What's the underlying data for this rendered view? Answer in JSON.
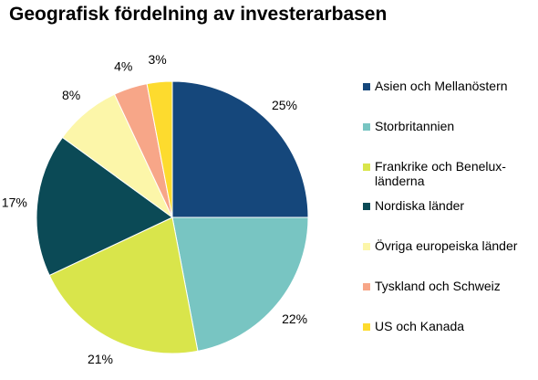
{
  "chart_data": {
    "type": "pie",
    "title": "Geografisk fördelning av investerarbasen",
    "slices": [
      {
        "label": "Asien och Mellanöstern",
        "value": 25,
        "value_label": "25%",
        "color": "#15477B"
      },
      {
        "label": "Storbritannien",
        "value": 22,
        "value_label": "22%",
        "color": "#78C5C2"
      },
      {
        "label": "Frankrike och Benelux-länderna",
        "value": 21,
        "value_label": "21%",
        "color": "#D9E54B"
      },
      {
        "label": "Nordiska länder",
        "value": 17,
        "value_label": "17%",
        "color": "#0B4A56"
      },
      {
        "label": "Övriga europeiska länder",
        "value": 8,
        "value_label": "8%",
        "color": "#FCF6A9"
      },
      {
        "label": "Tyskland och Schweiz",
        "value": 4,
        "value_label": "4%",
        "color": "#F7A688"
      },
      {
        "label": "US och Kanada",
        "value": 3,
        "value_label": "3%",
        "color": "#FDDB2E"
      }
    ],
    "start_angle": "12 o'clock",
    "direction": "clockwise",
    "legend_position": "right"
  }
}
